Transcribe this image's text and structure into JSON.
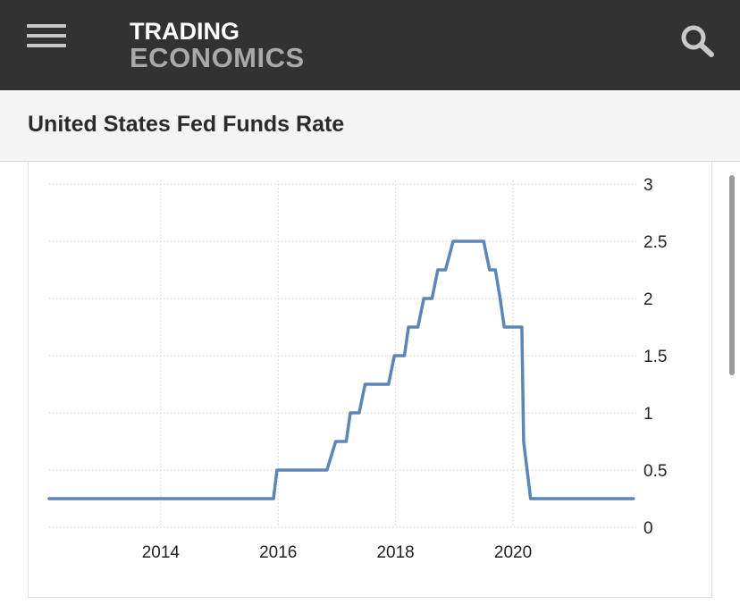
{
  "header": {
    "logo_line1": "TRADING",
    "logo_line2": "ECONOMICS",
    "menu_icon": "hamburger-menu-icon",
    "search_icon": "search-icon",
    "background_color": "#323232"
  },
  "page": {
    "title": "United States Fed Funds Rate"
  },
  "chart_data": {
    "type": "line",
    "title": "",
    "xlabel": "",
    "ylabel": "",
    "line_color": "#5b86b5",
    "grid": true,
    "ylim": [
      0,
      3
    ],
    "xlim": [
      2012.1,
      2022.1
    ],
    "x_ticks": [
      2014,
      2016,
      2018,
      2020
    ],
    "x_tick_labels": [
      "2014",
      "2016",
      "2018",
      "2020"
    ],
    "y_ticks": [
      0,
      0.5,
      1,
      1.5,
      2,
      2.5,
      3
    ],
    "y_tick_labels": [
      "0",
      "0.5",
      "1",
      "1.5",
      "2",
      "2.5",
      "3"
    ],
    "series": [
      {
        "points": [
          [
            2012.1,
            0.25
          ],
          [
            2015.92,
            0.25
          ],
          [
            2015.98,
            0.5
          ],
          [
            2016.83,
            0.5
          ],
          [
            2016.98,
            0.75
          ],
          [
            2017.16,
            0.75
          ],
          [
            2017.23,
            1.0
          ],
          [
            2017.38,
            1.0
          ],
          [
            2017.48,
            1.25
          ],
          [
            2017.88,
            1.25
          ],
          [
            2017.98,
            1.5
          ],
          [
            2018.15,
            1.5
          ],
          [
            2018.22,
            1.75
          ],
          [
            2018.38,
            1.75
          ],
          [
            2018.48,
            2.0
          ],
          [
            2018.62,
            2.0
          ],
          [
            2018.72,
            2.25
          ],
          [
            2018.85,
            2.25
          ],
          [
            2018.98,
            2.5
          ],
          [
            2019.5,
            2.5
          ],
          [
            2019.6,
            2.25
          ],
          [
            2019.7,
            2.25
          ],
          [
            2019.78,
            2.0
          ],
          [
            2019.85,
            1.75
          ],
          [
            2020.15,
            1.75
          ],
          [
            2020.18,
            0.75
          ],
          [
            2020.3,
            0.25
          ],
          [
            2022.05,
            0.25
          ]
        ]
      }
    ]
  }
}
